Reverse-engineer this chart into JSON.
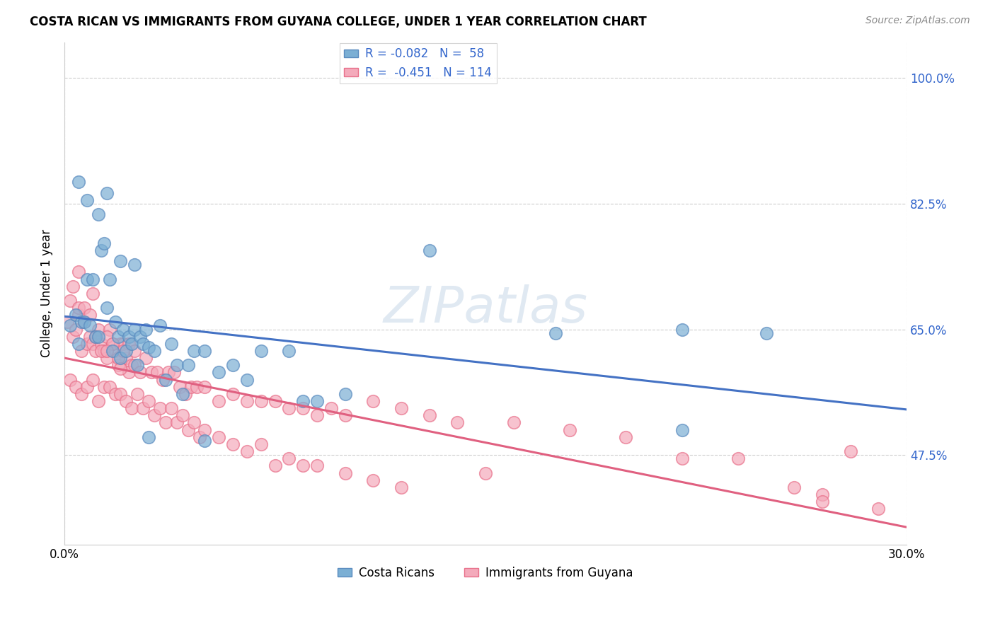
{
  "title": "COSTA RICAN VS IMMIGRANTS FROM GUYANA COLLEGE, UNDER 1 YEAR CORRELATION CHART",
  "source": "Source: ZipAtlas.com",
  "ylabel_label": "College, Under 1 year",
  "xlim": [
    0.0,
    0.3
  ],
  "ylim": [
    0.35,
    1.05
  ],
  "ytick_values": [
    0.475,
    0.65,
    0.825,
    1.0
  ],
  "ytick_labels": [
    "47.5%",
    "65.0%",
    "82.5%",
    "100.0%"
  ],
  "xtick_values": [
    0.0,
    0.3
  ],
  "xtick_labels": [
    "0.0%",
    "30.0%"
  ],
  "blue_color": "#7BAFD4",
  "blue_edge_color": "#5A8BBF",
  "pink_color": "#F4AABB",
  "pink_edge_color": "#E8708A",
  "blue_line_color": "#4472C4",
  "pink_line_color": "#E06080",
  "watermark_color": "#C8D8E8",
  "blue_scatter_x": [
    0.002,
    0.004,
    0.005,
    0.006,
    0.007,
    0.008,
    0.009,
    0.01,
    0.011,
    0.012,
    0.013,
    0.014,
    0.015,
    0.016,
    0.017,
    0.018,
    0.019,
    0.02,
    0.021,
    0.022,
    0.023,
    0.024,
    0.025,
    0.026,
    0.027,
    0.028,
    0.029,
    0.03,
    0.032,
    0.034,
    0.036,
    0.038,
    0.04,
    0.042,
    0.044,
    0.046,
    0.05,
    0.055,
    0.06,
    0.065,
    0.07,
    0.08,
    0.085,
    0.09,
    0.1,
    0.13,
    0.175,
    0.22,
    0.25,
    0.005,
    0.008,
    0.012,
    0.015,
    0.02,
    0.025,
    0.03,
    0.05,
    0.22
  ],
  "blue_scatter_y": [
    0.655,
    0.67,
    0.63,
    0.66,
    0.66,
    0.72,
    0.655,
    0.72,
    0.64,
    0.64,
    0.76,
    0.77,
    0.68,
    0.72,
    0.62,
    0.66,
    0.64,
    0.61,
    0.65,
    0.62,
    0.64,
    0.63,
    0.65,
    0.6,
    0.64,
    0.63,
    0.65,
    0.625,
    0.62,
    0.655,
    0.58,
    0.63,
    0.6,
    0.56,
    0.6,
    0.62,
    0.62,
    0.59,
    0.6,
    0.58,
    0.62,
    0.62,
    0.55,
    0.55,
    0.56,
    0.76,
    0.645,
    0.51,
    0.645,
    0.855,
    0.83,
    0.81,
    0.84,
    0.745,
    0.74,
    0.5,
    0.495,
    0.65
  ],
  "pink_scatter_x": [
    0.001,
    0.002,
    0.003,
    0.004,
    0.005,
    0.006,
    0.007,
    0.008,
    0.009,
    0.01,
    0.011,
    0.012,
    0.013,
    0.014,
    0.015,
    0.016,
    0.017,
    0.018,
    0.019,
    0.02,
    0.021,
    0.022,
    0.023,
    0.024,
    0.025,
    0.003,
    0.005,
    0.007,
    0.009,
    0.011,
    0.013,
    0.015,
    0.017,
    0.019,
    0.021,
    0.023,
    0.025,
    0.027,
    0.029,
    0.031,
    0.033,
    0.035,
    0.037,
    0.039,
    0.041,
    0.043,
    0.045,
    0.047,
    0.05,
    0.055,
    0.06,
    0.065,
    0.07,
    0.075,
    0.08,
    0.085,
    0.09,
    0.095,
    0.1,
    0.11,
    0.12,
    0.13,
    0.14,
    0.16,
    0.18,
    0.2,
    0.22,
    0.24,
    0.26,
    0.27,
    0.002,
    0.004,
    0.006,
    0.008,
    0.01,
    0.012,
    0.014,
    0.016,
    0.018,
    0.02,
    0.022,
    0.024,
    0.026,
    0.028,
    0.03,
    0.032,
    0.034,
    0.036,
    0.038,
    0.04,
    0.042,
    0.044,
    0.046,
    0.048,
    0.05,
    0.055,
    0.06,
    0.065,
    0.07,
    0.075,
    0.08,
    0.085,
    0.09,
    0.1,
    0.11,
    0.12,
    0.15,
    0.27,
    0.28,
    0.29,
    0.005,
    0.01,
    0.015,
    0.02
  ],
  "pink_scatter_y": [
    0.66,
    0.69,
    0.64,
    0.65,
    0.67,
    0.62,
    0.66,
    0.63,
    0.64,
    0.63,
    0.62,
    0.65,
    0.63,
    0.62,
    0.61,
    0.65,
    0.63,
    0.62,
    0.6,
    0.63,
    0.63,
    0.61,
    0.63,
    0.6,
    0.62,
    0.71,
    0.68,
    0.68,
    0.67,
    0.64,
    0.62,
    0.64,
    0.63,
    0.61,
    0.62,
    0.59,
    0.6,
    0.59,
    0.61,
    0.59,
    0.59,
    0.58,
    0.59,
    0.59,
    0.57,
    0.56,
    0.57,
    0.57,
    0.57,
    0.55,
    0.56,
    0.55,
    0.55,
    0.55,
    0.54,
    0.54,
    0.53,
    0.54,
    0.53,
    0.55,
    0.54,
    0.53,
    0.52,
    0.52,
    0.51,
    0.5,
    0.47,
    0.47,
    0.43,
    0.42,
    0.58,
    0.57,
    0.56,
    0.57,
    0.58,
    0.55,
    0.57,
    0.57,
    0.56,
    0.56,
    0.55,
    0.54,
    0.56,
    0.54,
    0.55,
    0.53,
    0.54,
    0.52,
    0.54,
    0.52,
    0.53,
    0.51,
    0.52,
    0.5,
    0.51,
    0.5,
    0.49,
    0.48,
    0.49,
    0.46,
    0.47,
    0.46,
    0.46,
    0.45,
    0.44,
    0.43,
    0.45,
    0.41,
    0.48,
    0.4,
    0.73,
    0.7,
    0.62,
    0.595
  ]
}
